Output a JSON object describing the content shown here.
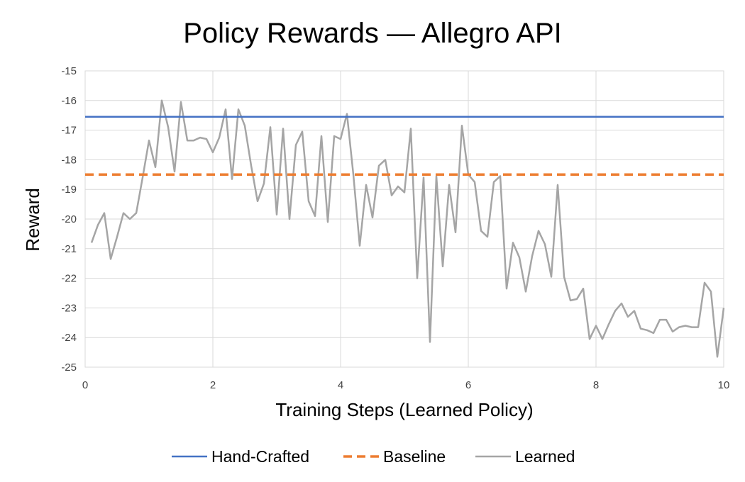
{
  "chart_data": {
    "type": "line",
    "title": "Policy Rewards —  Allegro API",
    "xlabel": "Training Steps (Learned Policy)",
    "ylabel": "Reward",
    "xlim": [
      0,
      10
    ],
    "ylim": [
      -25,
      -15
    ],
    "x_ticks": [
      "0",
      "2",
      "4",
      "6",
      "8",
      "10"
    ],
    "y_ticks": [
      "-15",
      "-16",
      "-17",
      "-18",
      "-19",
      "-20",
      "-21",
      "-22",
      "-23",
      "-24",
      "-25"
    ],
    "grid": true,
    "legend_position": "bottom",
    "series": [
      {
        "name": "Hand-Crafted",
        "style": "solid",
        "color": "#4472C4",
        "x": [
          0,
          10
        ],
        "values": [
          -16.55,
          -16.55
        ]
      },
      {
        "name": "Baseline",
        "style": "dashed",
        "color": "#ED7D31",
        "x": [
          0,
          10
        ],
        "values": [
          -18.5,
          -18.5
        ]
      },
      {
        "name": "Learned",
        "style": "solid",
        "color": "#A5A5A5",
        "x": [
          0.1,
          0.2,
          0.3,
          0.4,
          0.5,
          0.6,
          0.7,
          0.8,
          0.9,
          1.0,
          1.1,
          1.2,
          1.3,
          1.4,
          1.5,
          1.6,
          1.7,
          1.8,
          1.9,
          2.0,
          2.1,
          2.2,
          2.3,
          2.4,
          2.5,
          2.6,
          2.7,
          2.8,
          2.9,
          3.0,
          3.1,
          3.2,
          3.3,
          3.4,
          3.5,
          3.6,
          3.7,
          3.8,
          3.9,
          4.0,
          4.1,
          4.2,
          4.3,
          4.4,
          4.5,
          4.6,
          4.7,
          4.8,
          4.9,
          5.0,
          5.1,
          5.2,
          5.3,
          5.4,
          5.5,
          5.6,
          5.7,
          5.8,
          5.9,
          6.0,
          6.1,
          6.2,
          6.3,
          6.4,
          6.5,
          6.6,
          6.7,
          6.8,
          6.9,
          7.0,
          7.1,
          7.2,
          7.3,
          7.4,
          7.5,
          7.6,
          7.7,
          7.8,
          7.9,
          8.0,
          8.1,
          8.2,
          8.3,
          8.4,
          8.5,
          8.6,
          8.7,
          8.8,
          8.9,
          9.0,
          9.1,
          9.2,
          9.3,
          9.4,
          9.5,
          9.6,
          9.7,
          9.8,
          9.9,
          10.0
        ],
        "values": [
          -20.8,
          -20.2,
          -19.8,
          -21.35,
          -20.6,
          -19.8,
          -20.0,
          -19.8,
          -18.6,
          -17.35,
          -18.25,
          -16.0,
          -16.9,
          -18.4,
          -16.05,
          -17.35,
          -17.35,
          -17.25,
          -17.3,
          -17.75,
          -17.25,
          -16.3,
          -18.65,
          -16.3,
          -16.85,
          -18.2,
          -19.4,
          -18.8,
          -16.9,
          -19.85,
          -16.95,
          -20.0,
          -17.5,
          -17.05,
          -19.4,
          -19.9,
          -17.2,
          -20.1,
          -17.2,
          -17.3,
          -16.45,
          -18.5,
          -20.9,
          -18.85,
          -19.95,
          -18.2,
          -18.0,
          -19.2,
          -18.9,
          -19.1,
          -16.95,
          -22.0,
          -18.6,
          -24.15,
          -18.55,
          -21.6,
          -18.85,
          -20.45,
          -16.85,
          -18.5,
          -18.75,
          -20.4,
          -20.6,
          -18.75,
          -18.55,
          -22.35,
          -20.8,
          -21.3,
          -22.45,
          -21.25,
          -20.4,
          -20.85,
          -21.95,
          -18.85,
          -21.95,
          -22.75,
          -22.7,
          -22.35,
          -24.05,
          -23.6,
          -24.05,
          -23.55,
          -23.1,
          -22.85,
          -23.3,
          -23.1,
          -23.7,
          -23.75,
          -23.85,
          -23.4,
          -23.4,
          -23.8,
          -23.65,
          -23.6,
          -23.65,
          -23.65,
          -22.15,
          -22.45,
          -24.65,
          -23.0
        ]
      }
    ]
  }
}
